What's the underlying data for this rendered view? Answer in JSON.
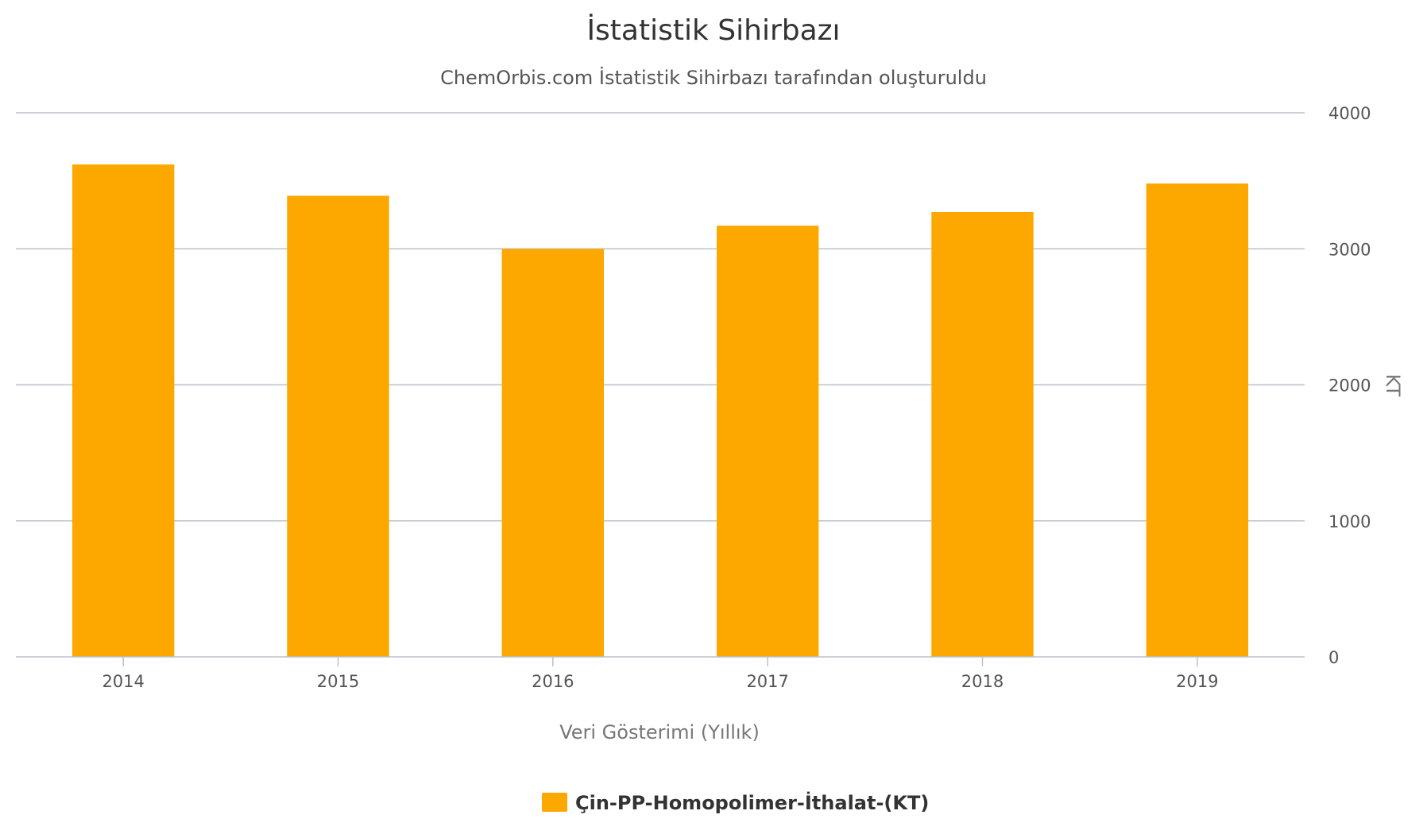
{
  "chart_data": {
    "type": "bar",
    "title": "İstatistik Sihirbazı",
    "subtitle": "ChemOrbis.com İstatistik Sihirbazı tarafından oluşturuldu",
    "xlabel": "Veri Gösterimi (Yıllık)",
    "ylabel": "KT",
    "categories": [
      "2014",
      "2015",
      "2016",
      "2017",
      "2018",
      "2019"
    ],
    "series": [
      {
        "name": "Çin-PP-Homopolimer-İthalat-(KT)",
        "values": [
          3620,
          3390,
          3000,
          3170,
          3270,
          3480
        ],
        "color": "#fca800"
      }
    ],
    "ylim": [
      0,
      4000
    ],
    "yticks": [
      "0",
      "1000",
      "2000",
      "3000",
      "4000"
    ],
    "y_axis_side": "right",
    "grid": true,
    "legend_position": "bottom-center"
  }
}
